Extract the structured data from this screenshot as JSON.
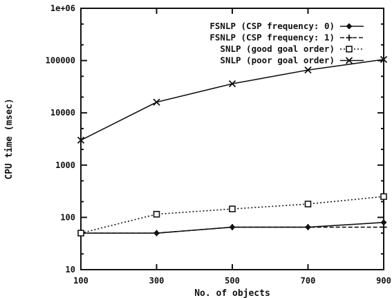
{
  "chart_data": {
    "type": "line",
    "xlabel": "No. of objects",
    "ylabel": "CPU time (msec)",
    "x": [
      100,
      300,
      500,
      700,
      900
    ],
    "xlim": [
      100,
      900
    ],
    "ylim": [
      10,
      1000000
    ],
    "yscale": "log",
    "grid": false,
    "legend_position": "top-right",
    "x_tick_labels": [
      "100",
      "300",
      "500",
      "700",
      "900"
    ],
    "y_tick_labels": [
      "10",
      "100",
      "1000",
      "10000",
      "100000",
      "1e+06"
    ],
    "series": [
      {
        "name": "FSNLP (CSP frequency: 0)",
        "marker": "diamond",
        "line": "solid",
        "values": [
          50,
          50,
          65,
          65,
          80
        ]
      },
      {
        "name": "FSNLP (CSP frequency: 1)",
        "marker": "plus",
        "line": "dashed",
        "values": [
          50,
          50,
          65,
          65,
          65
        ]
      },
      {
        "name": "SNLP (good goal order)",
        "marker": "square",
        "line": "dotted",
        "values": [
          50,
          115,
          145,
          180,
          250
        ]
      },
      {
        "name": "SNLP (poor goal order)",
        "marker": "cross",
        "line": "solid",
        "values": [
          3000,
          16000,
          36000,
          66000,
          105000
        ]
      }
    ]
  }
}
